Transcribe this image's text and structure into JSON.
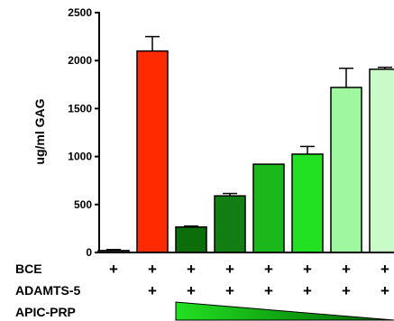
{
  "chart_data": {
    "type": "bar",
    "title": "",
    "xlabel": "",
    "ylabel": "ug/ml GAG",
    "ylim": [
      0,
      2500
    ],
    "yticks": [
      0,
      500,
      1000,
      1500,
      2000,
      2500
    ],
    "grid": false,
    "bars": [
      {
        "value": 20,
        "error": 10,
        "color": "#4d4d4d"
      },
      {
        "value": 2100,
        "error": 150,
        "color": "#ff2a00"
      },
      {
        "value": 265,
        "error": 10,
        "color": "#0b6e0b"
      },
      {
        "value": 590,
        "error": 25,
        "color": "#127d12"
      },
      {
        "value": 920,
        "error": 0,
        "color": "#1ab81a"
      },
      {
        "value": 1025,
        "error": 80,
        "color": "#22e022"
      },
      {
        "value": 1720,
        "error": 200,
        "color": "#9ff79f"
      },
      {
        "value": 1910,
        "error": 20,
        "color": "#c9fbc9"
      }
    ],
    "rows": [
      {
        "label": "BCE",
        "marks": [
          "+",
          "+",
          "+",
          "+",
          "+",
          "+",
          "+",
          "+"
        ]
      },
      {
        "label": "ADAMTS-5",
        "marks": [
          "",
          "+",
          "+",
          "+",
          "+",
          "+",
          "+",
          "+"
        ]
      },
      {
        "label": "APIC-PRP",
        "gradient_from_bar": 2,
        "gradient_colors": [
          "#22e022",
          "#006400"
        ]
      }
    ]
  }
}
